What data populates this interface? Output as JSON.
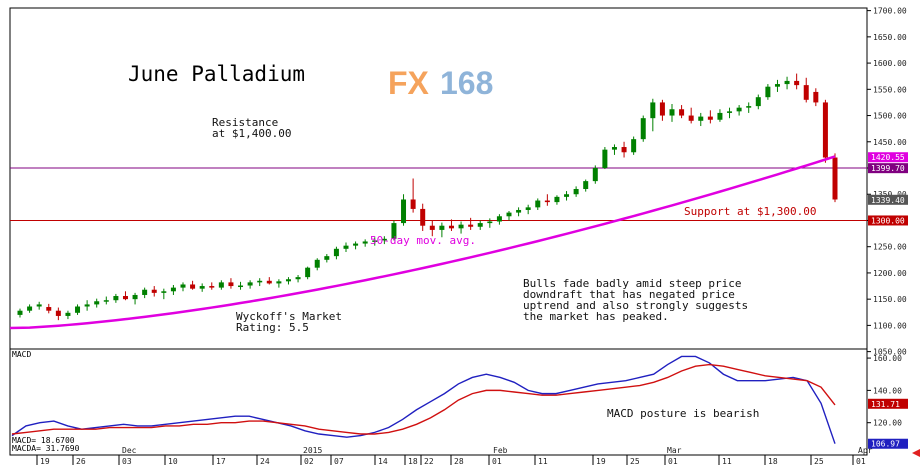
{
  "logo": {
    "fx": "FX",
    "num": "168"
  },
  "chart_data": [
    {
      "type": "candlestick",
      "title": "June Palladium",
      "ylim": [
        1055,
        1705
      ],
      "y_ticks": [
        1700,
        1650,
        1600,
        1550,
        1500,
        1450,
        1400,
        1350,
        1300,
        1250,
        1200,
        1150,
        1100,
        1050
      ],
      "y_tick_labels": [
        "1700.00",
        "1650.00",
        "1600.00",
        "1550.00",
        "1500.00",
        "1450.00",
        "1400.00",
        "1350.00",
        "1300.00",
        "1250.00",
        "1200.00",
        "1150.00",
        "1100.00",
        "1050.00"
      ],
      "price_tags": [
        {
          "label": "1420.55",
          "value": 1420.55,
          "color": "#e000e0"
        },
        {
          "label": "1399.70",
          "value": 1399.7,
          "color": "#800080"
        },
        {
          "label": "1339.40",
          "value": 1339.4,
          "color": "#555555"
        },
        {
          "label": "1300.00",
          "value": 1300,
          "color": "#c00000"
        }
      ],
      "lines": [
        {
          "name": "Resistance",
          "value": 1400,
          "color": "#800080"
        },
        {
          "name": "Support",
          "value": 1300,
          "color": "#c00000"
        }
      ],
      "annotations": {
        "resistance_1": "Resistance",
        "resistance_2": "at $1,400.00",
        "support": "Support at $1,300.00",
        "mav": "50-day mov. avg.",
        "rating_1": "Wyckoff's Market",
        "rating_2": "Rating: 5.5",
        "note_1": "Bulls fade badly amid steep price",
        "note_2": "downdraft that has negated price",
        "note_3": "uptrend and also strongly suggests",
        "note_4": "the market has peaked."
      },
      "ohlc": [
        [
          1120,
          1132,
          1115,
          1128
        ],
        [
          1128,
          1140,
          1124,
          1136
        ],
        [
          1136,
          1145,
          1130,
          1140
        ],
        [
          1135,
          1141,
          1123,
          1128
        ],
        [
          1128,
          1134,
          1110,
          1118
        ],
        [
          1118,
          1128,
          1112,
          1124
        ],
        [
          1124,
          1140,
          1120,
          1136
        ],
        [
          1136,
          1148,
          1128,
          1140
        ],
        [
          1140,
          1151,
          1134,
          1146
        ],
        [
          1146,
          1155,
          1140,
          1148
        ],
        [
          1148,
          1160,
          1143,
          1156
        ],
        [
          1156,
          1165,
          1148,
          1150
        ],
        [
          1150,
          1162,
          1140,
          1158
        ],
        [
          1158,
          1172,
          1152,
          1168
        ],
        [
          1168,
          1175,
          1155,
          1162
        ],
        [
          1162,
          1170,
          1150,
          1165
        ],
        [
          1165,
          1177,
          1158,
          1172
        ],
        [
          1172,
          1182,
          1165,
          1178
        ],
        [
          1178,
          1185,
          1168,
          1170
        ],
        [
          1170,
          1180,
          1164,
          1175
        ],
        [
          1175,
          1182,
          1168,
          1172
        ],
        [
          1172,
          1186,
          1168,
          1182
        ],
        [
          1182,
          1190,
          1170,
          1175
        ],
        [
          1175,
          1183,
          1168,
          1176
        ],
        [
          1176,
          1186,
          1170,
          1182
        ],
        [
          1182,
          1190,
          1175,
          1185
        ],
        [
          1185,
          1192,
          1178,
          1180
        ],
        [
          1180,
          1188,
          1172,
          1184
        ],
        [
          1184,
          1192,
          1178,
          1188
        ],
        [
          1188,
          1196,
          1182,
          1192
        ],
        [
          1192,
          1212,
          1188,
          1210
        ],
        [
          1210,
          1228,
          1205,
          1225
        ],
        [
          1225,
          1236,
          1220,
          1232
        ],
        [
          1232,
          1250,
          1226,
          1246
        ],
        [
          1246,
          1258,
          1240,
          1252
        ],
        [
          1252,
          1260,
          1245,
          1256
        ],
        [
          1256,
          1264,
          1250,
          1260
        ],
        [
          1260,
          1268,
          1252,
          1262
        ],
        [
          1262,
          1270,
          1255,
          1265
        ],
        [
          1265,
          1300,
          1262,
          1295
        ],
        [
          1295,
          1350,
          1290,
          1340
        ],
        [
          1340,
          1380,
          1315,
          1322
        ],
        [
          1322,
          1332,
          1280,
          1290
        ],
        [
          1290,
          1300,
          1270,
          1282
        ],
        [
          1282,
          1296,
          1268,
          1290
        ],
        [
          1290,
          1302,
          1280,
          1285
        ],
        [
          1285,
          1298,
          1275,
          1292
        ],
        [
          1292,
          1305,
          1282,
          1288
        ],
        [
          1288,
          1300,
          1282,
          1295
        ],
        [
          1295,
          1304,
          1286,
          1298
        ],
        [
          1298,
          1312,
          1292,
          1308
        ],
        [
          1308,
          1318,
          1300,
          1315
        ],
        [
          1315,
          1325,
          1308,
          1320
        ],
        [
          1320,
          1330,
          1312,
          1325
        ],
        [
          1325,
          1342,
          1320,
          1338
        ],
        [
          1338,
          1350,
          1328,
          1335
        ],
        [
          1335,
          1348,
          1330,
          1345
        ],
        [
          1345,
          1356,
          1338,
          1350
        ],
        [
          1350,
          1365,
          1345,
          1360
        ],
        [
          1360,
          1378,
          1355,
          1375
        ],
        [
          1375,
          1405,
          1370,
          1400
        ],
        [
          1400,
          1440,
          1398,
          1435
        ],
        [
          1435,
          1445,
          1425,
          1440
        ],
        [
          1440,
          1450,
          1420,
          1430
        ],
        [
          1430,
          1460,
          1425,
          1455
        ],
        [
          1455,
          1500,
          1450,
          1495
        ],
        [
          1495,
          1532,
          1470,
          1525
        ],
        [
          1525,
          1530,
          1490,
          1500
        ],
        [
          1500,
          1522,
          1488,
          1512
        ],
        [
          1512,
          1520,
          1495,
          1500
        ],
        [
          1500,
          1515,
          1485,
          1490
        ],
        [
          1490,
          1505,
          1480,
          1498
        ],
        [
          1498,
          1510,
          1485,
          1492
        ],
        [
          1492,
          1512,
          1488,
          1505
        ],
        [
          1505,
          1515,
          1495,
          1508
        ],
        [
          1508,
          1520,
          1500,
          1515
        ],
        [
          1515,
          1525,
          1505,
          1518
        ],
        [
          1518,
          1540,
          1512,
          1535
        ],
        [
          1535,
          1560,
          1530,
          1555
        ],
        [
          1555,
          1568,
          1545,
          1560
        ],
        [
          1560,
          1574,
          1550,
          1566
        ],
        [
          1566,
          1580,
          1550,
          1558
        ],
        [
          1558,
          1572,
          1525,
          1530
        ],
        [
          1545,
          1552,
          1518,
          1525
        ],
        [
          1525,
          1530,
          1410,
          1420
        ],
        [
          1420,
          1428,
          1335,
          1340
        ]
      ]
    },
    {
      "type": "line",
      "name": "MACD",
      "ylim": [
        100,
        165
      ],
      "y_ticks": [
        160,
        140,
        120
      ],
      "y_tick_labels": [
        "160.00",
        "140.00",
        "120.00"
      ],
      "annotation": "MACD posture is bearish",
      "legend_1": "MACD=    18.6700",
      "legend_2": "MACDA=   31.7690",
      "tags": [
        {
          "label": "131.71",
          "value": 131.71,
          "color": "#c00000"
        },
        {
          "label": "106.97",
          "value": 106.97,
          "color": "#2020c0"
        }
      ],
      "series": [
        {
          "name": "MACD",
          "color": "#2020c0",
          "values": [
            112,
            118,
            120,
            121,
            118,
            116,
            117,
            118,
            119,
            118,
            118,
            119,
            120,
            121,
            122,
            123,
            124,
            124,
            122,
            120,
            118,
            115,
            113,
            112,
            111,
            112,
            114,
            117,
            122,
            128,
            133,
            138,
            144,
            148,
            150,
            148,
            145,
            140,
            138,
            138,
            140,
            142,
            144,
            145,
            146,
            148,
            150,
            156,
            161,
            161,
            157,
            150,
            146,
            146,
            146,
            147,
            148,
            146,
            132,
            107
          ]
        },
        {
          "name": "MACDA",
          "color": "#d01010",
          "values": [
            113,
            114,
            115,
            116,
            116,
            116,
            116,
            117,
            117,
            117,
            117,
            118,
            118,
            119,
            119,
            120,
            120,
            121,
            121,
            120,
            119,
            118,
            116,
            115,
            114,
            113,
            113,
            114,
            116,
            119,
            123,
            128,
            134,
            138,
            140,
            140,
            139,
            138,
            137,
            137,
            138,
            139,
            140,
            141,
            142,
            143,
            145,
            148,
            152,
            155,
            156,
            155,
            153,
            151,
            149,
            148,
            147,
            146,
            142,
            131
          ]
        }
      ]
    }
  ],
  "x_axis": {
    "labels": [
      "19",
      "26",
      "03",
      "10",
      "17",
      "24",
      "02",
      "07",
      "14",
      "18",
      "22",
      "28",
      "01",
      "11",
      "19",
      "25",
      "01",
      "11",
      "18",
      "25",
      "01"
    ],
    "months": [
      "Dec",
      "2015",
      "Feb",
      "Mar",
      "Apr"
    ]
  }
}
